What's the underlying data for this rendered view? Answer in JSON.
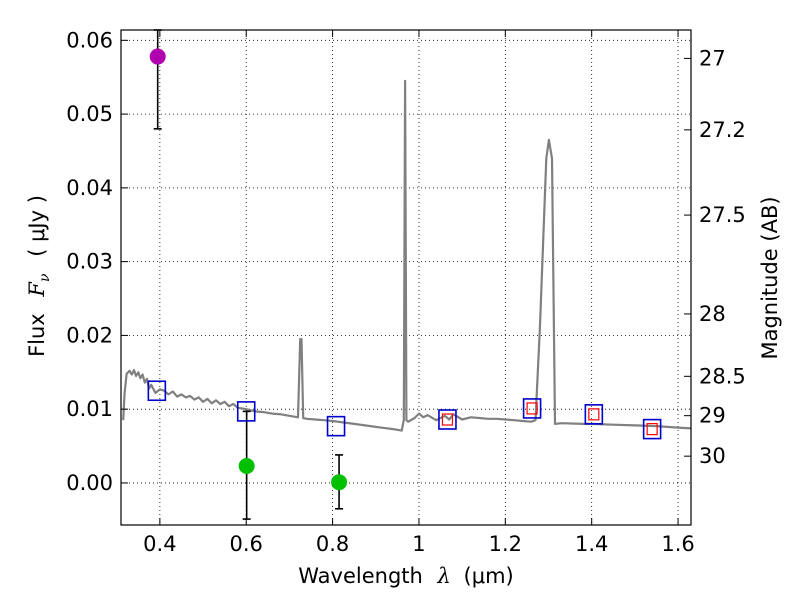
{
  "chart_data": {
    "type": "scatter",
    "xlabel": "Wavelength",
    "xlabel_symbol": "λ",
    "xlabel_unit": "(μm)",
    "ylabel": "Flux",
    "ylabel_symbol": "F",
    "ylabel_subscript": "ν",
    "ylabel_unit": "( μJy )",
    "y2label": "Magnitude (AB)",
    "xlim": [
      0.31,
      1.63
    ],
    "ylim": [
      -0.0057,
      0.0614
    ],
    "grid": true,
    "x_ticks": [
      0.4,
      0.6,
      0.8,
      1.0,
      1.2,
      1.4,
      1.6
    ],
    "x_tick_labels": [
      "0.4",
      "0.6",
      "0.8",
      "1",
      "1.2",
      "1.4",
      "1.6"
    ],
    "y_ticks": [
      0.0,
      0.01,
      0.02,
      0.03,
      0.04,
      0.05,
      0.06
    ],
    "y_tick_labels": [
      "0.00",
      "0.01",
      "0.02",
      "0.03",
      "0.04",
      "0.05",
      "0.06"
    ],
    "mag_ticks": [
      27,
      27.2,
      27.5,
      28,
      28.5,
      29,
      30
    ],
    "mag_tick_labels": [
      "27",
      "27.2",
      "27.5",
      "28",
      "28.5",
      "29",
      "30"
    ],
    "colors": {
      "model": "#808080",
      "magenta": "#b000b0",
      "green": "#00c000",
      "blue_box": "#0000cc",
      "red_box": "#ff0000",
      "errorbar": "#000000"
    },
    "series": [
      {
        "name": "model spectrum",
        "style": "line",
        "x": [
          0.315,
          0.318,
          0.323,
          0.33,
          0.335,
          0.34,
          0.345,
          0.35,
          0.355,
          0.36,
          0.365,
          0.37,
          0.375,
          0.38,
          0.39,
          0.4,
          0.41,
          0.42,
          0.43,
          0.44,
          0.45,
          0.46,
          0.47,
          0.48,
          0.49,
          0.5,
          0.51,
          0.52,
          0.53,
          0.54,
          0.55,
          0.56,
          0.57,
          0.58,
          0.6,
          0.62,
          0.64,
          0.66,
          0.68,
          0.7,
          0.72,
          0.725,
          0.728,
          0.732,
          0.74,
          0.76,
          0.78,
          0.8,
          0.85,
          0.9,
          0.94,
          0.96,
          0.965,
          0.968,
          0.971,
          0.975,
          0.99,
          1.0,
          1.01,
          1.02,
          1.04,
          1.06,
          1.07,
          1.08,
          1.1,
          1.12,
          1.14,
          1.16,
          1.18,
          1.2,
          1.22,
          1.24,
          1.26,
          1.27,
          1.28,
          1.295,
          1.301,
          1.308,
          1.315,
          1.33,
          1.38,
          1.4,
          1.45,
          1.5,
          1.55,
          1.6,
          1.63
        ],
        "y": [
          0.0085,
          0.012,
          0.0148,
          0.0152,
          0.0147,
          0.0153,
          0.0145,
          0.015,
          0.0142,
          0.0147,
          0.0136,
          0.0141,
          0.0128,
          0.0133,
          0.0122,
          0.0127,
          0.0125,
          0.012,
          0.0124,
          0.0117,
          0.012,
          0.0116,
          0.0118,
          0.0113,
          0.0116,
          0.011,
          0.0114,
          0.0108,
          0.0112,
          0.0107,
          0.011,
          0.0104,
          0.0107,
          0.0102,
          0.01,
          0.0097,
          0.0096,
          0.0094,
          0.0093,
          0.0091,
          0.0089,
          0.0195,
          0.0195,
          0.0088,
          0.0087,
          0.0086,
          0.0085,
          0.0084,
          0.008,
          0.0076,
          0.0073,
          0.0071,
          0.0085,
          0.0545,
          0.0085,
          0.0083,
          0.0088,
          0.0094,
          0.0089,
          0.0092,
          0.0085,
          0.0091,
          0.0086,
          0.0093,
          0.0086,
          0.0089,
          0.0088,
          0.0087,
          0.0087,
          0.0086,
          0.0085,
          0.0084,
          0.0083,
          0.0085,
          0.021,
          0.044,
          0.0465,
          0.044,
          0.008,
          0.0081,
          0.008,
          0.008,
          0.0079,
          0.0078,
          0.0077,
          0.0075,
          0.0074
        ]
      },
      {
        "name": "magenta detection",
        "style": "point",
        "x": [
          0.395
        ],
        "y": [
          0.0578
        ],
        "yerr_low": [
          0.0098
        ],
        "yerr_high": [
          0.0036
        ]
      },
      {
        "name": "green detections",
        "style": "point",
        "x": [
          0.601,
          0.815
        ],
        "y": [
          0.0023,
          0.0001
        ],
        "yerr_low": [
          0.0072,
          0.0036
        ],
        "yerr_high": [
          0.0074,
          0.0037
        ]
      },
      {
        "name": "model photometry (blue squares)",
        "style": "square",
        "x": [
          0.393,
          0.6,
          0.808,
          1.066,
          1.262,
          1.405,
          1.54
        ],
        "y": [
          0.0125,
          0.0097,
          0.0077,
          0.0086,
          0.0101,
          0.0093,
          0.0073
        ]
      },
      {
        "name": "model photometry (red squares)",
        "style": "square",
        "x": [
          1.066,
          1.262,
          1.405,
          1.54
        ],
        "y": [
          0.0086,
          0.0101,
          0.0093,
          0.0073
        ]
      }
    ]
  }
}
